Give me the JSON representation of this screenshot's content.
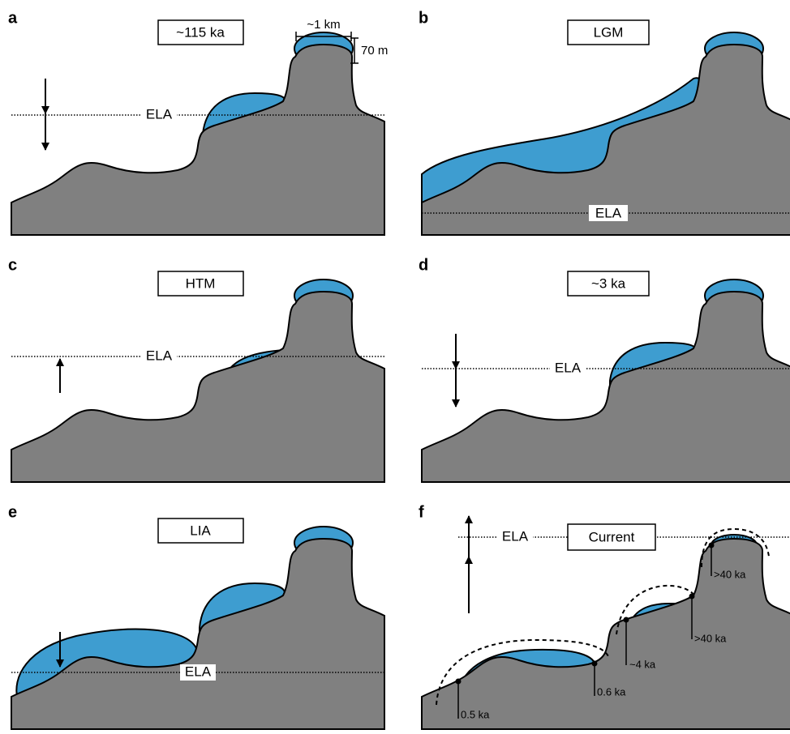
{
  "panels": [
    {
      "letter": "a",
      "title": "~115 ka",
      "ela": "ELA"
    },
    {
      "letter": "b",
      "title": "LGM",
      "ela": "ELA"
    },
    {
      "letter": "c",
      "title": "HTM",
      "ela": "ELA"
    },
    {
      "letter": "d",
      "title": "~3 ka",
      "ela": "ELA"
    },
    {
      "letter": "e",
      "title": "LIA",
      "ela": "ELA"
    },
    {
      "letter": "f",
      "title": "Current",
      "ela": "ELA"
    }
  ],
  "scale": {
    "width": "~1 km",
    "height": "70 m"
  },
  "ages": [
    "0.5 ka",
    "0.6 ka",
    "~4 ka",
    ">40 ka",
    ">40 ka"
  ]
}
